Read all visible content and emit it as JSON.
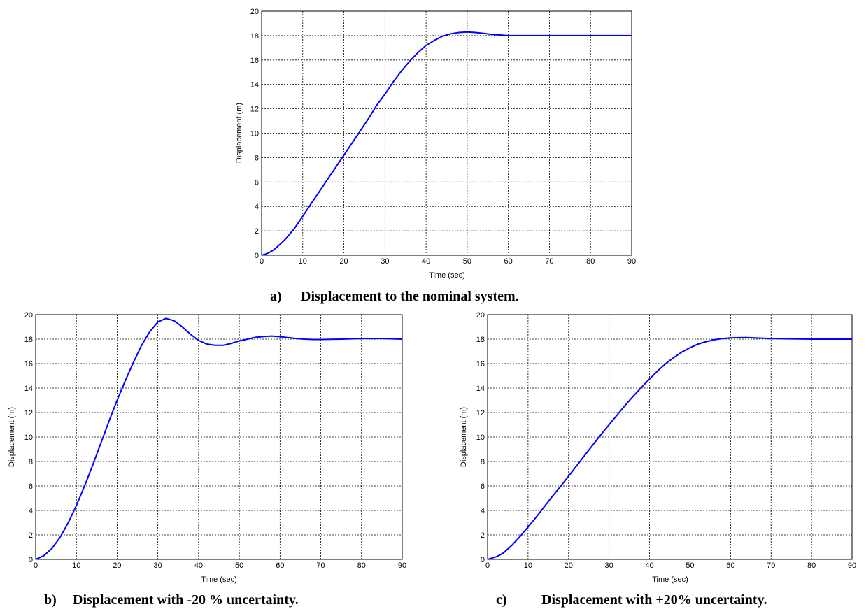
{
  "chart_data": [
    {
      "type": "line",
      "caption_marker": "a)",
      "caption_text": "Displacement to the nominal system.",
      "xlabel": "Time (sec)",
      "ylabel": "Displacement (m)",
      "xlim": [
        0,
        90
      ],
      "ylim": [
        0,
        20
      ],
      "xticks": [
        0,
        10,
        20,
        30,
        40,
        50,
        60,
        70,
        80,
        90
      ],
      "yticks": [
        0,
        2,
        4,
        6,
        8,
        10,
        12,
        14,
        16,
        18,
        20
      ],
      "grid": true,
      "series_color": "#0000ff",
      "series": [
        {
          "x": [
            0,
            1,
            2,
            3,
            4,
            5,
            6,
            8,
            10,
            12,
            14,
            16,
            18,
            20,
            22,
            24,
            26,
            28,
            30,
            32,
            34,
            36,
            38,
            40,
            42,
            44,
            46,
            48,
            50,
            52,
            54,
            56,
            58,
            60,
            65,
            70,
            75,
            80,
            85,
            90
          ],
          "y": [
            0,
            0.1,
            0.25,
            0.45,
            0.75,
            1.05,
            1.4,
            2.2,
            3.2,
            4.2,
            5.2,
            6.2,
            7.2,
            8.2,
            9.2,
            10.2,
            11.2,
            12.3,
            13.2,
            14.2,
            15.1,
            15.9,
            16.6,
            17.2,
            17.6,
            17.95,
            18.15,
            18.25,
            18.3,
            18.25,
            18.18,
            18.1,
            18.05,
            18.0,
            18.0,
            18.0,
            18.0,
            18.0,
            18.0,
            18.0
          ]
        }
      ]
    },
    {
      "type": "line",
      "caption_marker": "b)",
      "caption_text": "Displacement with -20 % uncertainty.",
      "xlabel": "Time (sec)",
      "ylabel": "Displacement (m)",
      "xlim": [
        0,
        90
      ],
      "ylim": [
        0,
        20
      ],
      "xticks": [
        0,
        10,
        20,
        30,
        40,
        50,
        60,
        70,
        80,
        90
      ],
      "yticks": [
        0,
        2,
        4,
        6,
        8,
        10,
        12,
        14,
        16,
        18,
        20
      ],
      "grid": true,
      "series_color": "#0000ff",
      "series": [
        {
          "x": [
            0,
            2,
            4,
            6,
            8,
            10,
            12,
            14,
            16,
            18,
            20,
            22,
            24,
            26,
            28,
            30,
            32,
            34,
            36,
            38,
            40,
            42,
            44,
            46,
            48,
            50,
            52,
            54,
            56,
            58,
            60,
            62,
            64,
            66,
            68,
            70,
            75,
            80,
            85,
            90
          ],
          "y": [
            0,
            0.3,
            0.9,
            1.8,
            3.0,
            4.4,
            6.0,
            7.7,
            9.5,
            11.3,
            13.0,
            14.6,
            16.1,
            17.5,
            18.6,
            19.4,
            19.7,
            19.5,
            19.0,
            18.4,
            17.9,
            17.6,
            17.5,
            17.5,
            17.65,
            17.85,
            18.0,
            18.15,
            18.22,
            18.25,
            18.2,
            18.12,
            18.05,
            18.0,
            17.97,
            17.97,
            18.0,
            18.05,
            18.05,
            18.0
          ]
        }
      ]
    },
    {
      "type": "line",
      "caption_marker": "c)",
      "caption_text": "Displacement with +20% uncertainty.",
      "xlabel": "Time (sec)",
      "ylabel": "Displacement (m)",
      "xlim": [
        0,
        90
      ],
      "ylim": [
        0,
        20
      ],
      "xticks": [
        0,
        10,
        20,
        30,
        40,
        50,
        60,
        70,
        80,
        90
      ],
      "yticks": [
        0,
        2,
        4,
        6,
        8,
        10,
        12,
        14,
        16,
        18,
        20
      ],
      "grid": true,
      "series_color": "#0000ff",
      "series": [
        {
          "x": [
            0,
            1,
            2,
            3,
            4,
            6,
            8,
            10,
            12,
            14,
            16,
            18,
            20,
            22,
            24,
            26,
            28,
            30,
            32,
            34,
            36,
            38,
            40,
            42,
            44,
            46,
            48,
            50,
            52,
            54,
            56,
            58,
            60,
            62,
            64,
            66,
            70,
            75,
            80,
            85,
            90
          ],
          "y": [
            0,
            0.1,
            0.2,
            0.35,
            0.55,
            1.15,
            1.85,
            2.65,
            3.45,
            4.3,
            5.15,
            5.95,
            6.8,
            7.65,
            8.5,
            9.35,
            10.2,
            11.0,
            11.8,
            12.6,
            13.35,
            14.05,
            14.75,
            15.4,
            16.0,
            16.5,
            16.95,
            17.3,
            17.6,
            17.8,
            17.95,
            18.05,
            18.1,
            18.12,
            18.13,
            18.1,
            18.05,
            18.02,
            18.0,
            18.0,
            18.0
          ]
        }
      ]
    }
  ]
}
